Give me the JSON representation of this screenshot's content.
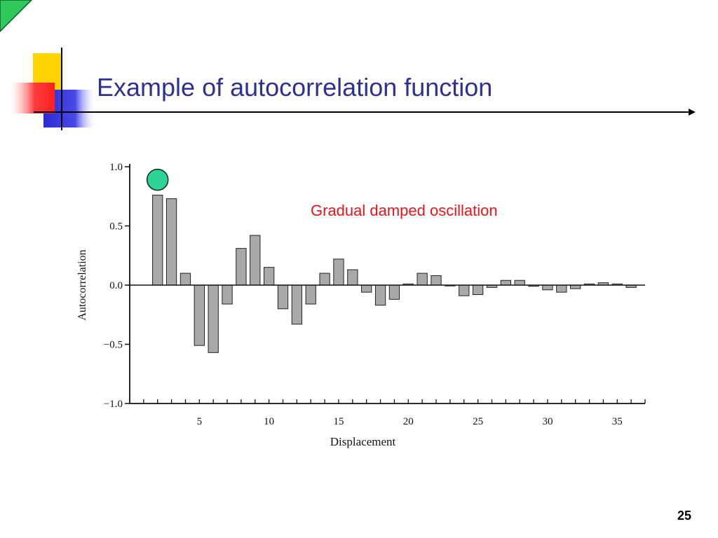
{
  "slide": {
    "title": "Example of autocorrelation function",
    "annotation": "Gradual damped oscillation",
    "page_number": "25",
    "colors": {
      "title": "#2e3192",
      "annotation": "#e8141b",
      "marker": "#2ed39a",
      "bar": "#a9a9a9",
      "deco_yellow": "#ffd200",
      "deco_red": "#ff3b3b",
      "deco_blue": "#2b2bd4",
      "corner": "#2ec95a"
    }
  },
  "chart_data": {
    "type": "bar",
    "xlabel": "Displacement",
    "ylabel": "Autocorrelation",
    "xlim": [
      0,
      37
    ],
    "ylim": [
      -1.0,
      1.0
    ],
    "y_ticks": [
      {
        "value": 1.0,
        "label": "1.0"
      },
      {
        "value": 0.5,
        "label": "0.5"
      },
      {
        "value": 0.0,
        "label": "0.0"
      },
      {
        "value": -0.5,
        "label": "−0.5"
      },
      {
        "value": -1.0,
        "label": "−1.0"
      }
    ],
    "x_ticks": [
      {
        "value": 5,
        "label": "5"
      },
      {
        "value": 10,
        "label": "10"
      },
      {
        "value": 15,
        "label": "15"
      },
      {
        "value": 20,
        "label": "20"
      },
      {
        "value": 25,
        "label": "25"
      },
      {
        "value": 30,
        "label": "30"
      },
      {
        "value": 35,
        "label": "35"
      }
    ],
    "highlight_point": {
      "x": 2,
      "y": 0.89
    },
    "x": [
      2,
      3,
      4,
      5,
      6,
      7,
      8,
      9,
      10,
      11,
      12,
      13,
      14,
      15,
      16,
      17,
      18,
      19,
      20,
      21,
      22,
      23,
      24,
      25,
      26,
      27,
      28,
      29,
      30,
      31,
      32,
      33,
      34,
      35,
      36
    ],
    "values": [
      0.76,
      0.73,
      0.1,
      -0.51,
      -0.57,
      -0.16,
      0.31,
      0.42,
      0.15,
      -0.2,
      -0.33,
      -0.16,
      0.1,
      0.22,
      0.13,
      -0.06,
      -0.17,
      -0.12,
      0.01,
      0.1,
      0.08,
      0.0,
      -0.09,
      -0.08,
      -0.02,
      0.04,
      0.04,
      -0.01,
      -0.04,
      -0.06,
      -0.03,
      0.01,
      0.02,
      0.01,
      -0.02
    ],
    "grid": false
  }
}
